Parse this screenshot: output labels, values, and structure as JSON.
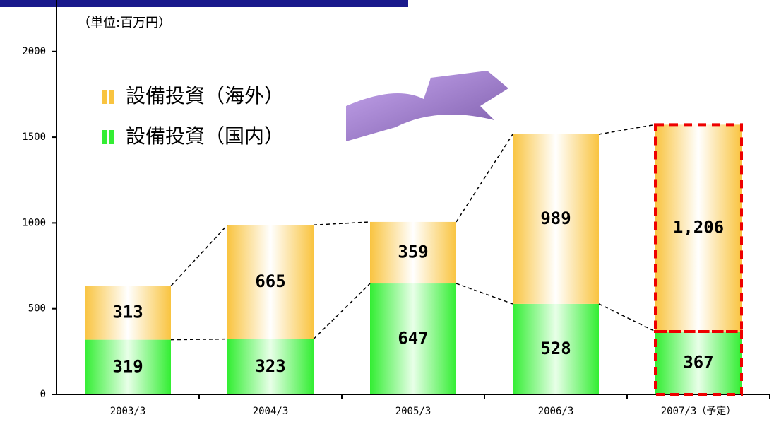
{
  "chart_data": {
    "type": "stacked-bar",
    "unit_label": "（単位:百万円）",
    "categories": [
      "2003/3",
      "2004/3",
      "2005/3",
      "2006/3",
      "2007/3（予定）"
    ],
    "series": [
      {
        "name": "設備投資（国内）",
        "color": "#33ee33",
        "values": [
          319,
          323,
          647,
          528,
          367
        ]
      },
      {
        "name": "設備投資（海外）",
        "color": "#f9c440",
        "values": [
          313,
          665,
          359,
          989,
          1206
        ],
        "value_labels": [
          "313",
          "665",
          "359",
          "989",
          "1,206"
        ]
      }
    ],
    "ylim": [
      0,
      2300
    ],
    "yticks": [
      0,
      500,
      1000,
      1500,
      2000
    ]
  }
}
